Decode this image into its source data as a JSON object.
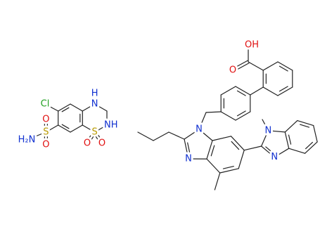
{
  "molecules": [
    {
      "labels": [
        "Cl",
        "H₂N",
        "S",
        "O",
        "O",
        "H",
        "N",
        "NH",
        "S",
        "O",
        "O"
      ]
    },
    {
      "labels": [
        "OH",
        "O",
        "N",
        "N",
        "N",
        "N"
      ]
    }
  ]
}
